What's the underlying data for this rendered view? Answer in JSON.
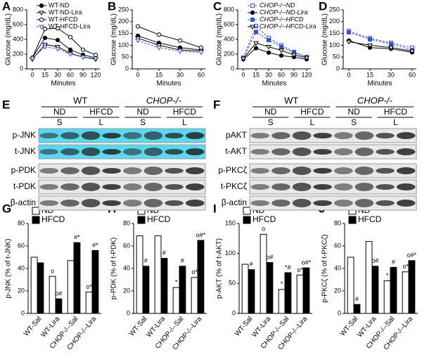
{
  "chart_data": [
    {
      "panel": "A",
      "type": "line",
      "ylabel": "Glucose (mg/dL)",
      "xlabel": "Minutes",
      "categories": [
        "0",
        "15",
        "30",
        "60",
        "90",
        "120"
      ],
      "ylim": [
        0,
        800
      ],
      "yticks": [
        0,
        200,
        400,
        600,
        800
      ],
      "legend": "upper right",
      "series": [
        {
          "name": "WT-ND",
          "color": "#000000",
          "marker": "circle",
          "filled": true,
          "dashed": false,
          "values": [
            150,
            420,
            390,
            260,
            190,
            150
          ]
        },
        {
          "name": "WT-ND-Lira",
          "color": "#000000",
          "marker": "triangle",
          "filled": false,
          "dashed": false,
          "values": [
            130,
            330,
            300,
            210,
            160,
            130
          ]
        },
        {
          "name": "WT-HFCD",
          "color": "#000000",
          "marker": "circle",
          "filled": false,
          "dashed": false,
          "values": [
            150,
            540,
            550,
            430,
            260,
            190
          ]
        },
        {
          "name": "WT-HFCD-Lira",
          "color": "#3355cc",
          "marker": "triangle",
          "filled": false,
          "dashed": true,
          "values": [
            140,
            300,
            270,
            200,
            160,
            140
          ]
        }
      ]
    },
    {
      "panel": "B",
      "type": "line",
      "ylabel": "Glucose (mg/dL)",
      "xlabel": "Minutes",
      "categories": [
        "0",
        "15",
        "30",
        "60"
      ],
      "ylim": [
        0,
        250
      ],
      "yticks": [
        0,
        50,
        100,
        150,
        200,
        250
      ],
      "series": [
        {
          "color": "#000000",
          "marker": "circle",
          "filled": true,
          "dashed": false,
          "values": [
            140,
            110,
            90,
            80
          ]
        },
        {
          "color": "#000000",
          "marker": "triangle",
          "filled": false,
          "dashed": false,
          "values": [
            130,
            100,
            80,
            75
          ]
        },
        {
          "color": "#000000",
          "marker": "circle",
          "filled": false,
          "dashed": false,
          "values": [
            180,
            145,
            120,
            90
          ]
        },
        {
          "color": "#3355cc",
          "marker": "triangle",
          "filled": false,
          "dashed": true,
          "values": [
            120,
            90,
            75,
            70
          ]
        }
      ]
    },
    {
      "panel": "C",
      "type": "line",
      "ylabel": "Glucose (mg/dL)",
      "xlabel": "Minutes",
      "categories": [
        "0",
        "15",
        "30",
        "60",
        "90",
        "120"
      ],
      "ylim": [
        0,
        800
      ],
      "yticks": [
        0,
        200,
        400,
        600,
        800
      ],
      "legend": "upper right",
      "series": [
        {
          "name": "CHOP-/--ND",
          "color": "#3355cc",
          "marker": "square",
          "filled": false,
          "dashed": true,
          "values": [
            150,
            580,
            420,
            320,
            230,
            160
          ]
        },
        {
          "name": "CHOP-/--ND-Lira",
          "color": "#000000",
          "marker": "circle",
          "filled": true,
          "dashed": false,
          "values": [
            130,
            280,
            220,
            180,
            160,
            130
          ]
        },
        {
          "name": "CHOP-/--HFCD",
          "color": "#3355cc",
          "marker": "square",
          "filled": true,
          "dashed": true,
          "values": [
            150,
            500,
            390,
            300,
            220,
            160
          ]
        },
        {
          "name": "CHOP-/--HFCD-Lira",
          "color": "#000000",
          "marker": "triangle",
          "filled": false,
          "dashed": false,
          "values": [
            140,
            350,
            300,
            250,
            190,
            150
          ]
        }
      ]
    },
    {
      "panel": "D",
      "type": "line",
      "ylabel": "Glucose (mg/dL)",
      "xlabel": "Minutes",
      "categories": [
        "0",
        "15",
        "30",
        "60"
      ],
      "ylim": [
        0,
        250
      ],
      "yticks": [
        0,
        50,
        100,
        150,
        200,
        250
      ],
      "series": [
        {
          "color": "#3355cc",
          "marker": "square",
          "filled": false,
          "dashed": true,
          "values": [
            160,
            130,
            110,
            90
          ]
        },
        {
          "color": "#000000",
          "marker": "circle",
          "filled": true,
          "dashed": false,
          "values": [
            120,
            90,
            85,
            70
          ]
        },
        {
          "color": "#3355cc",
          "marker": "square",
          "filled": true,
          "dashed": true,
          "values": [
            155,
            125,
            105,
            80
          ]
        },
        {
          "color": "#000000",
          "marker": "triangle",
          "filled": false,
          "dashed": false,
          "values": [
            115,
            100,
            90,
            75
          ]
        }
      ]
    },
    {
      "panel": "G",
      "type": "bar",
      "ylabel": "p-JNK (% of t-JNK)",
      "categories": [
        "WT-Sal",
        "WT-Lira",
        "CHOP-/--Sal",
        "CHOP-/--Lira"
      ],
      "ylim": [
        0,
        80
      ],
      "yticks": [
        0,
        20,
        40,
        60,
        80
      ],
      "series": [
        {
          "name": "ND",
          "color": "#ffffff",
          "values": [
            50,
            33,
            47,
            19
          ],
          "annotations": [
            null,
            "o",
            null,
            "o*"
          ]
        },
        {
          "name": "HFCD",
          "color": "#000000",
          "values": [
            45,
            13,
            63,
            56
          ],
          "annotations": [
            null,
            "o#",
            "#*",
            "#*"
          ]
        }
      ]
    },
    {
      "panel": "H",
      "type": "bar",
      "ylabel": "p-PDK (% of t-PDK)",
      "categories": [
        "WT-Sal",
        "WT-Lira",
        "CHOP-/--Sal",
        "CHOP-/--Lira"
      ],
      "ylim": [
        0,
        80
      ],
      "yticks": [
        0,
        20,
        40,
        60,
        80
      ],
      "series": [
        {
          "name": "ND",
          "color": "#ffffff",
          "values": [
            69,
            69,
            23,
            32
          ],
          "annotations": [
            null,
            null,
            "*",
            "o*"
          ]
        },
        {
          "name": "HFCD",
          "color": "#000000",
          "values": [
            42,
            49,
            42,
            65
          ],
          "annotations": [
            "#",
            "#",
            "#",
            "o#*"
          ]
        }
      ]
    },
    {
      "panel": "I",
      "type": "bar",
      "ylabel": "p-AKT (% of t-AKT)",
      "categories": [
        "WT-Sal",
        "WT-Lira",
        "CHOP-/--Sal",
        "CHOP-/--Lira"
      ],
      "ylim": [
        0,
        150
      ],
      "yticks": [
        0,
        50,
        100,
        150
      ],
      "series": [
        {
          "name": "ND",
          "color": "#ffffff",
          "values": [
            82,
            132,
            40,
            64
          ],
          "annotations": [
            null,
            "o",
            "*",
            "o*"
          ]
        },
        {
          "name": "HFCD",
          "color": "#000000",
          "values": [
            73,
            85,
            68,
            76
          ],
          "annotations": [
            "#",
            "o#",
            "*#",
            "o#*"
          ]
        }
      ]
    },
    {
      "panel": "J",
      "type": "bar",
      "ylabel": "p-PKCζ (% of t-PKCζ)",
      "categories": [
        "WT-Sal",
        "WT-Lira",
        "CHOP-/--Sal",
        "CHOP-/--Lira"
      ],
      "ylim": [
        0,
        80
      ],
      "yticks": [
        0,
        20,
        40,
        60,
        80
      ],
      "series": [
        {
          "name": "ND",
          "color": "#ffffff",
          "values": [
            50,
            64,
            29,
            37
          ],
          "annotations": [
            null,
            null,
            "*",
            "o*"
          ]
        },
        {
          "name": "HFCD",
          "color": "#000000",
          "values": [
            8,
            42,
            41,
            47
          ],
          "annotations": [
            "#",
            "o#",
            "#",
            "o#*"
          ]
        }
      ]
    }
  ],
  "blots": [
    {
      "panel": "E",
      "groups": [
        "WT",
        "CHOP-/-"
      ],
      "conditions": [
        "ND",
        "HFCD",
        "ND",
        "HFCD"
      ],
      "lanes": [
        "S",
        "L",
        "S",
        "L"
      ],
      "rows": [
        {
          "label": "p-JNK",
          "color": "#5ad8f0"
        },
        {
          "label": "t-JNK",
          "color": "#5ad8f0"
        },
        {
          "label": "p-PDK",
          "color": "#e8e8e8"
        },
        {
          "label": "t-PDK",
          "color": "#e8e8e8"
        },
        {
          "label": "β-actin",
          "color": "#e8e8e8"
        }
      ]
    },
    {
      "panel": "F",
      "groups": [
        "WT",
        "CHOP-/-"
      ],
      "conditions": [
        "ND",
        "HFCD",
        "ND",
        "HFCD"
      ],
      "lanes": [
        "S",
        "L",
        "S",
        "L"
      ],
      "rows": [
        {
          "label": "pAKT",
          "color": "#e8e8e8"
        },
        {
          "label": "t-AKT",
          "color": "#e8e8e8"
        },
        {
          "label": "p-PKCζ",
          "color": "#e8e8e8"
        },
        {
          "label": "t-PKCζ",
          "color": "#e8e8e8"
        },
        {
          "label": "β-actin",
          "color": "#e8e8e8"
        }
      ]
    }
  ]
}
